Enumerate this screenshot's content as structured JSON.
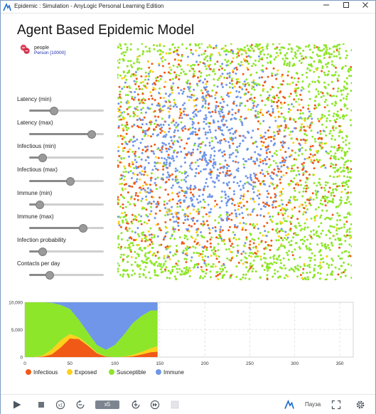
{
  "window": {
    "title": "Epidemic : Simulation - AnyLogic Personal Learning Edition",
    "buttons": [
      "minimize",
      "maximize",
      "close"
    ]
  },
  "page": {
    "title": "Agent Based Epidemic Model"
  },
  "agent": {
    "name": "people",
    "population": "Person [10000]",
    "icon": "agent-population-icon"
  },
  "parameters": [
    {
      "label": "Latency (min)",
      "value_fraction": 0.33
    },
    {
      "label": "Latency (max)",
      "value_fraction": 0.84
    },
    {
      "label": "Infectious (min)",
      "value_fraction": 0.18
    },
    {
      "label": "Infectious (max)",
      "value_fraction": 0.55
    },
    {
      "label": "Immune (min)",
      "value_fraction": 0.14
    },
    {
      "label": "Immune (max)",
      "value_fraction": 0.72
    },
    {
      "label": "Infection probability",
      "value_fraction": 0.18
    },
    {
      "label": "Contacts per day",
      "value_fraction": 0.28
    }
  ],
  "colors": {
    "infectious": "#f05a16",
    "exposed": "#ffd11a",
    "susceptible": "#8ee62a",
    "immune": "#6f96e8",
    "slider_fill": "#8a8a8a",
    "speed_badge": "#7c858f",
    "population_text": "#1a2aa8"
  },
  "chart_data": {
    "type": "area",
    "stacked": true,
    "xlim": [
      0,
      365
    ],
    "ylim": [
      0,
      10000
    ],
    "x_ticks": [
      0,
      50,
      100,
      150,
      200,
      250,
      300,
      350
    ],
    "y_ticks": [
      "0",
      "5,000",
      "10,000"
    ],
    "y_tick_values": [
      0,
      5000,
      10000
    ],
    "grid": true,
    "legend_position": "bottom-left",
    "x": [
      0,
      10,
      20,
      30,
      40,
      50,
      60,
      70,
      80,
      90,
      100,
      110,
      120,
      130,
      140,
      148
    ],
    "series": [
      {
        "name": "Infectious",
        "color": "#f05a16",
        "values": [
          0,
          0,
          100,
          500,
          1800,
          3400,
          3300,
          2100,
          700,
          80,
          0,
          30,
          150,
          500,
          900,
          1000
        ]
      },
      {
        "name": "Exposed",
        "color": "#ffd11a",
        "values": [
          0,
          0,
          200,
          900,
          1300,
          800,
          300,
          200,
          100,
          30,
          0,
          40,
          250,
          450,
          700,
          1000
        ]
      },
      {
        "name": "Susceptible",
        "color": "#8ee62a",
        "values": [
          10000,
          10000,
          9700,
          8500,
          6400,
          4600,
          3200,
          2200,
          1400,
          1200,
          2200,
          4000,
          5800,
          6600,
          6900,
          6500
        ]
      },
      {
        "name": "Immune",
        "color": "#6f96e8",
        "values": [
          0,
          0,
          0,
          100,
          500,
          1200,
          3200,
          5500,
          7800,
          8690,
          7800,
          5930,
          3800,
          2450,
          1500,
          1500
        ]
      }
    ]
  },
  "toolbar": {
    "run_icon": "play-icon",
    "stop_icon": "stop-icon",
    "speed": "x5",
    "pause_label": "Пауза"
  }
}
